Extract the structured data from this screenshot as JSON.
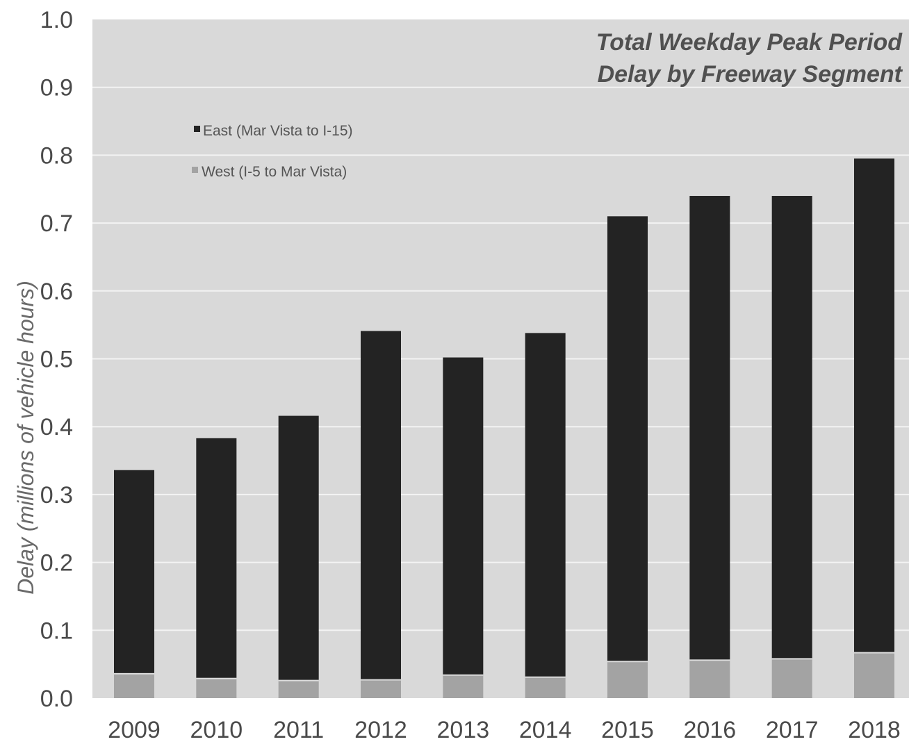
{
  "chart_data": {
    "type": "bar",
    "stacked": true,
    "title_lines": [
      "Total Weekday Peak Period",
      "Delay by Freeway Segment"
    ],
    "xlabel": "",
    "ylabel": "Delay (millions of vehicle hours)",
    "ylim": [
      0,
      1.0
    ],
    "yticks": [
      "0.0",
      "0.1",
      "0.2",
      "0.3",
      "0.4",
      "0.5",
      "0.6",
      "0.7",
      "0.8",
      "0.9",
      "1.0"
    ],
    "categories": [
      "2009",
      "2010",
      "2011",
      "2012",
      "2013",
      "2014",
      "2015",
      "2016",
      "2017",
      "2018"
    ],
    "series": [
      {
        "name": "West (I-5 to Mar Vista)",
        "color": "#a3a3a3",
        "values": [
          0.037,
          0.03,
          0.027,
          0.028,
          0.035,
          0.032,
          0.055,
          0.057,
          0.059,
          0.068
        ]
      },
      {
        "name": "East (Mar Vista to I-15)",
        "color": "#232323",
        "values": [
          0.299,
          0.353,
          0.389,
          0.513,
          0.467,
          0.506,
          0.655,
          0.683,
          0.681,
          0.727
        ]
      }
    ],
    "legend_position": "top-left",
    "legend_order": [
      "East (Mar Vista to I-15)",
      "West (I-5 to Mar Vista)"
    ],
    "grid": true,
    "plot_background": "#d9d9d9",
    "gridline_color": "#f3f3f3"
  }
}
